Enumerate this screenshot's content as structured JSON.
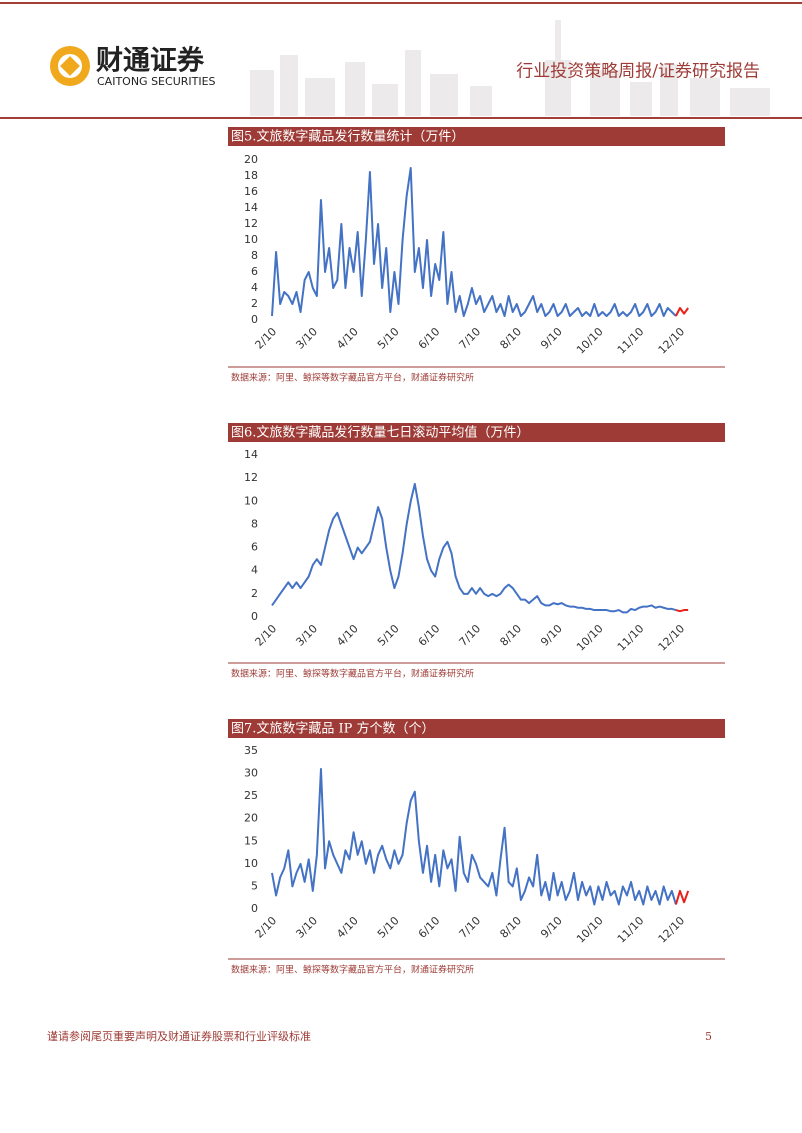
{
  "header": {
    "brand": "财通证券",
    "brand_en": "CAITONG SECURITIES",
    "report_type": "行业投资策略周报/证券研究报告"
  },
  "chart_data": [
    {
      "type": "line",
      "title": "图5.文旅数字藏品发行数量统计（万件）",
      "source": "数据来源：阿里、鲸探等数字藏品官方平台，财通证券研究所",
      "categories": [
        "2/10",
        null,
        null,
        null,
        null,
        null,
        null,
        null,
        null,
        null,
        "3/10",
        null,
        null,
        null,
        null,
        null,
        null,
        null,
        null,
        null,
        "4/10",
        null,
        null,
        null,
        null,
        null,
        null,
        null,
        null,
        null,
        "5/10",
        null,
        null,
        null,
        null,
        null,
        null,
        null,
        null,
        null,
        "6/10",
        null,
        null,
        null,
        null,
        null,
        null,
        null,
        null,
        null,
        "7/10",
        null,
        null,
        null,
        null,
        null,
        null,
        null,
        null,
        null,
        "8/10",
        null,
        null,
        null,
        null,
        null,
        null,
        null,
        null,
        null,
        "9/10",
        null,
        null,
        null,
        null,
        null,
        null,
        null,
        null,
        null,
        "10/10",
        null,
        null,
        null,
        null,
        null,
        null,
        null,
        null,
        null,
        "11/10",
        null,
        null,
        null,
        null,
        null,
        null,
        null,
        null,
        null,
        "12/10",
        null,
        null
      ],
      "series": [
        {
          "color": "#4472c4",
          "values": [
            0.5,
            8.5,
            2,
            3.5,
            3,
            2,
            3.5,
            1,
            5,
            6,
            4,
            3,
            15,
            6,
            9,
            4,
            5,
            12,
            4,
            9,
            6,
            11,
            3,
            10,
            18.5,
            7,
            12,
            4,
            9,
            1,
            6,
            2,
            10,
            15.5,
            19,
            6,
            9,
            4,
            10,
            3,
            7,
            5,
            11,
            2,
            6,
            1,
            3,
            0.5,
            2,
            4,
            2,
            3,
            1,
            2,
            3,
            1,
            2,
            0.5,
            3,
            1,
            2,
            0.5,
            1,
            2,
            3,
            1,
            2,
            0.5,
            1,
            2,
            0.5,
            1,
            2,
            0.5,
            1,
            1.5,
            0.5,
            1,
            0.5,
            2,
            0.5,
            1,
            0.5,
            1,
            2,
            0.5,
            1,
            0.5,
            1,
            2,
            0.5,
            1,
            2,
            0.5,
            1,
            2,
            0.5,
            1.5,
            1,
            0.5,
            null,
            null,
            null
          ]
        },
        {
          "color": "#e8201c",
          "values": [
            null,
            null,
            null,
            null,
            null,
            null,
            null,
            null,
            null,
            null,
            null,
            null,
            null,
            null,
            null,
            null,
            null,
            null,
            null,
            null,
            null,
            null,
            null,
            null,
            null,
            null,
            null,
            null,
            null,
            null,
            null,
            null,
            null,
            null,
            null,
            null,
            null,
            null,
            null,
            null,
            null,
            null,
            null,
            null,
            null,
            null,
            null,
            null,
            null,
            null,
            null,
            null,
            null,
            null,
            null,
            null,
            null,
            null,
            null,
            null,
            null,
            null,
            null,
            null,
            null,
            null,
            null,
            null,
            null,
            null,
            null,
            null,
            null,
            null,
            null,
            null,
            null,
            null,
            null,
            null,
            null,
            null,
            null,
            null,
            null,
            null,
            null,
            null,
            null,
            null,
            null,
            null,
            null,
            null,
            null,
            null,
            null,
            null,
            null,
            0.5,
            1.5,
            0.8,
            1.5
          ]
        }
      ],
      "ylim": [
        0,
        20
      ],
      "yticks": [
        0,
        2,
        4,
        6,
        8,
        10,
        12,
        14,
        16,
        18,
        20
      ]
    },
    {
      "type": "line",
      "title": "图6.文旅数字藏品发行数量七日滚动平均值（万件）",
      "source": "数据来源：阿里、鲸探等数字藏品官方平台，财通证券研究所",
      "categories": [
        "2/10",
        null,
        null,
        null,
        null,
        null,
        null,
        null,
        null,
        null,
        "3/10",
        null,
        null,
        null,
        null,
        null,
        null,
        null,
        null,
        null,
        "4/10",
        null,
        null,
        null,
        null,
        null,
        null,
        null,
        null,
        null,
        "5/10",
        null,
        null,
        null,
        null,
        null,
        null,
        null,
        null,
        null,
        "6/10",
        null,
        null,
        null,
        null,
        null,
        null,
        null,
        null,
        null,
        "7/10",
        null,
        null,
        null,
        null,
        null,
        null,
        null,
        null,
        null,
        "8/10",
        null,
        null,
        null,
        null,
        null,
        null,
        null,
        null,
        null,
        "9/10",
        null,
        null,
        null,
        null,
        null,
        null,
        null,
        null,
        null,
        "10/10",
        null,
        null,
        null,
        null,
        null,
        null,
        null,
        null,
        null,
        "11/10",
        null,
        null,
        null,
        null,
        null,
        null,
        null,
        null,
        null,
        "12/10",
        null,
        null
      ],
      "series": [
        {
          "color": "#4472c4",
          "values": [
            1,
            1.5,
            2,
            2.5,
            3,
            2.5,
            3,
            2.5,
            3,
            3.5,
            4.5,
            5,
            4.5,
            6,
            7.5,
            8.5,
            9,
            8,
            7,
            6,
            5,
            6,
            5.5,
            6,
            6.5,
            8,
            9.5,
            8.5,
            6,
            4,
            2.5,
            3.5,
            5.5,
            8,
            10,
            11.5,
            9.5,
            7,
            5,
            4,
            3.5,
            5,
            6,
            6.5,
            5.5,
            3.5,
            2.5,
            2,
            2,
            2.5,
            2,
            2.5,
            2,
            1.8,
            2,
            1.8,
            2,
            2.5,
            2.8,
            2.5,
            2,
            1.5,
            1.5,
            1.2,
            1.5,
            1.8,
            1.2,
            1,
            1,
            1.2,
            1.1,
            1.2,
            1,
            0.9,
            0.9,
            0.8,
            0.8,
            0.7,
            0.7,
            0.6,
            0.6,
            0.6,
            0.6,
            0.5,
            0.5,
            0.6,
            0.4,
            0.4,
            0.7,
            0.6,
            0.8,
            0.9,
            0.9,
            1,
            0.8,
            0.9,
            0.8,
            0.7,
            0.7,
            0.6,
            null,
            null,
            null
          ]
        },
        {
          "color": "#e8201c",
          "values": [
            null,
            null,
            null,
            null,
            null,
            null,
            null,
            null,
            null,
            null,
            null,
            null,
            null,
            null,
            null,
            null,
            null,
            null,
            null,
            null,
            null,
            null,
            null,
            null,
            null,
            null,
            null,
            null,
            null,
            null,
            null,
            null,
            null,
            null,
            null,
            null,
            null,
            null,
            null,
            null,
            null,
            null,
            null,
            null,
            null,
            null,
            null,
            null,
            null,
            null,
            null,
            null,
            null,
            null,
            null,
            null,
            null,
            null,
            null,
            null,
            null,
            null,
            null,
            null,
            null,
            null,
            null,
            null,
            null,
            null,
            null,
            null,
            null,
            null,
            null,
            null,
            null,
            null,
            null,
            null,
            null,
            null,
            null,
            null,
            null,
            null,
            null,
            null,
            null,
            null,
            null,
            null,
            null,
            null,
            null,
            null,
            null,
            null,
            null,
            0.6,
            0.5,
            0.6,
            0.6
          ]
        }
      ],
      "ylim": [
        0,
        14
      ],
      "yticks": [
        0,
        2,
        4,
        6,
        8,
        10,
        12,
        14
      ]
    },
    {
      "type": "line",
      "title": "图7.文旅数字藏品 IP 方个数（个）",
      "source": "数据来源：阿里、鲸探等数字藏品官方平台，财通证券研究所",
      "categories": [
        "2/10",
        null,
        null,
        null,
        null,
        null,
        null,
        null,
        null,
        null,
        "3/10",
        null,
        null,
        null,
        null,
        null,
        null,
        null,
        null,
        null,
        "4/10",
        null,
        null,
        null,
        null,
        null,
        null,
        null,
        null,
        null,
        "5/10",
        null,
        null,
        null,
        null,
        null,
        null,
        null,
        null,
        null,
        "6/10",
        null,
        null,
        null,
        null,
        null,
        null,
        null,
        null,
        null,
        "7/10",
        null,
        null,
        null,
        null,
        null,
        null,
        null,
        null,
        null,
        "8/10",
        null,
        null,
        null,
        null,
        null,
        null,
        null,
        null,
        null,
        "9/10",
        null,
        null,
        null,
        null,
        null,
        null,
        null,
        null,
        null,
        "10/10",
        null,
        null,
        null,
        null,
        null,
        null,
        null,
        null,
        null,
        "11/10",
        null,
        null,
        null,
        null,
        null,
        null,
        null,
        null,
        null,
        "12/10",
        null,
        null
      ],
      "series": [
        {
          "color": "#4472c4",
          "values": [
            8,
            3,
            7,
            9,
            13,
            5,
            8,
            10,
            6,
            11,
            4,
            12,
            31,
            9,
            15,
            12,
            10,
            8,
            13,
            11,
            17,
            12,
            15,
            10,
            13,
            8,
            12,
            14,
            11,
            9,
            13,
            10,
            12,
            19,
            24,
            26,
            15,
            8,
            14,
            6,
            12,
            5,
            13,
            9,
            11,
            4,
            16,
            8,
            6,
            12,
            10,
            7,
            6,
            5,
            8,
            3,
            11,
            18,
            6,
            5,
            9,
            2,
            4,
            7,
            5,
            12,
            3,
            6,
            2,
            8,
            3,
            6,
            2,
            4,
            8,
            2,
            6,
            3,
            5,
            1,
            5,
            2,
            6,
            3,
            4,
            1,
            5,
            3,
            6,
            2,
            4,
            1,
            5,
            2,
            4,
            1,
            5,
            2,
            4,
            1,
            null,
            null,
            null
          ]
        },
        {
          "color": "#e8201c",
          "values": [
            null,
            null,
            null,
            null,
            null,
            null,
            null,
            null,
            null,
            null,
            null,
            null,
            null,
            null,
            null,
            null,
            null,
            null,
            null,
            null,
            null,
            null,
            null,
            null,
            null,
            null,
            null,
            null,
            null,
            null,
            null,
            null,
            null,
            null,
            null,
            null,
            null,
            null,
            null,
            null,
            null,
            null,
            null,
            null,
            null,
            null,
            null,
            null,
            null,
            null,
            null,
            null,
            null,
            null,
            null,
            null,
            null,
            null,
            null,
            null,
            null,
            null,
            null,
            null,
            null,
            null,
            null,
            null,
            null,
            null,
            null,
            null,
            null,
            null,
            null,
            null,
            null,
            null,
            null,
            null,
            null,
            null,
            null,
            null,
            null,
            null,
            null,
            null,
            null,
            null,
            null,
            null,
            null,
            null,
            null,
            null,
            null,
            null,
            null,
            1,
            4,
            1.5,
            4
          ]
        }
      ],
      "ylim": [
        0,
        35
      ],
      "yticks": [
        0,
        5,
        10,
        15,
        20,
        25,
        30,
        35
      ]
    }
  ],
  "footer": {
    "note": "谨请参阅尾页重要声明及财通证券股票和行业评级标准",
    "page": "5"
  }
}
